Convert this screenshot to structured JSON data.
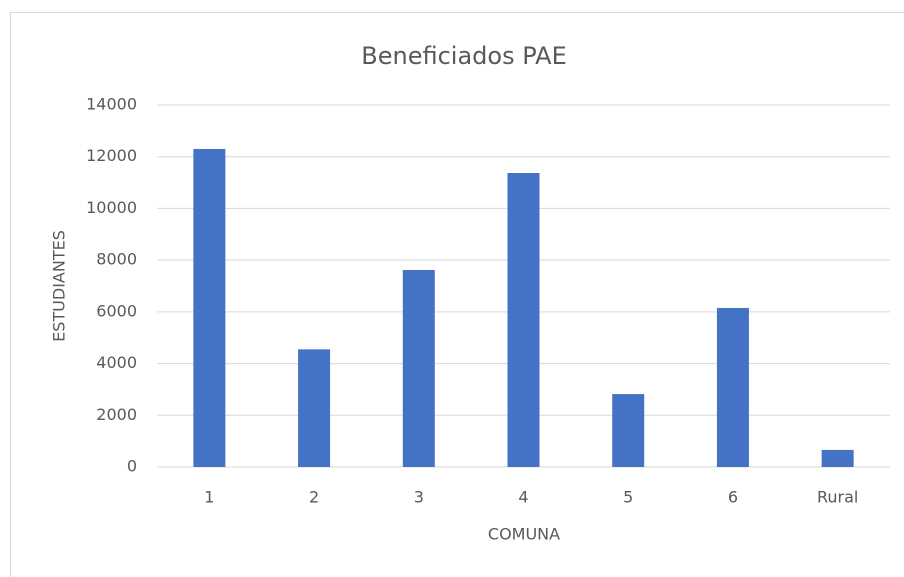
{
  "chart_data": {
    "type": "bar",
    "title": "Beneficiados PAE",
    "x_label": "COMUNA",
    "y_label": "ESTUDIANTES",
    "categories": [
      "1",
      "2",
      "3",
      "4",
      "5",
      "6",
      "Rural"
    ],
    "values": [
      12300,
      4550,
      7620,
      11370,
      2820,
      6150,
      660
    ],
    "color": "#4472c4",
    "ylim": [
      0,
      14000
    ],
    "yticks": [
      0,
      2000,
      4000,
      6000,
      8000,
      10000,
      12000,
      14000
    ],
    "grid": true
  }
}
